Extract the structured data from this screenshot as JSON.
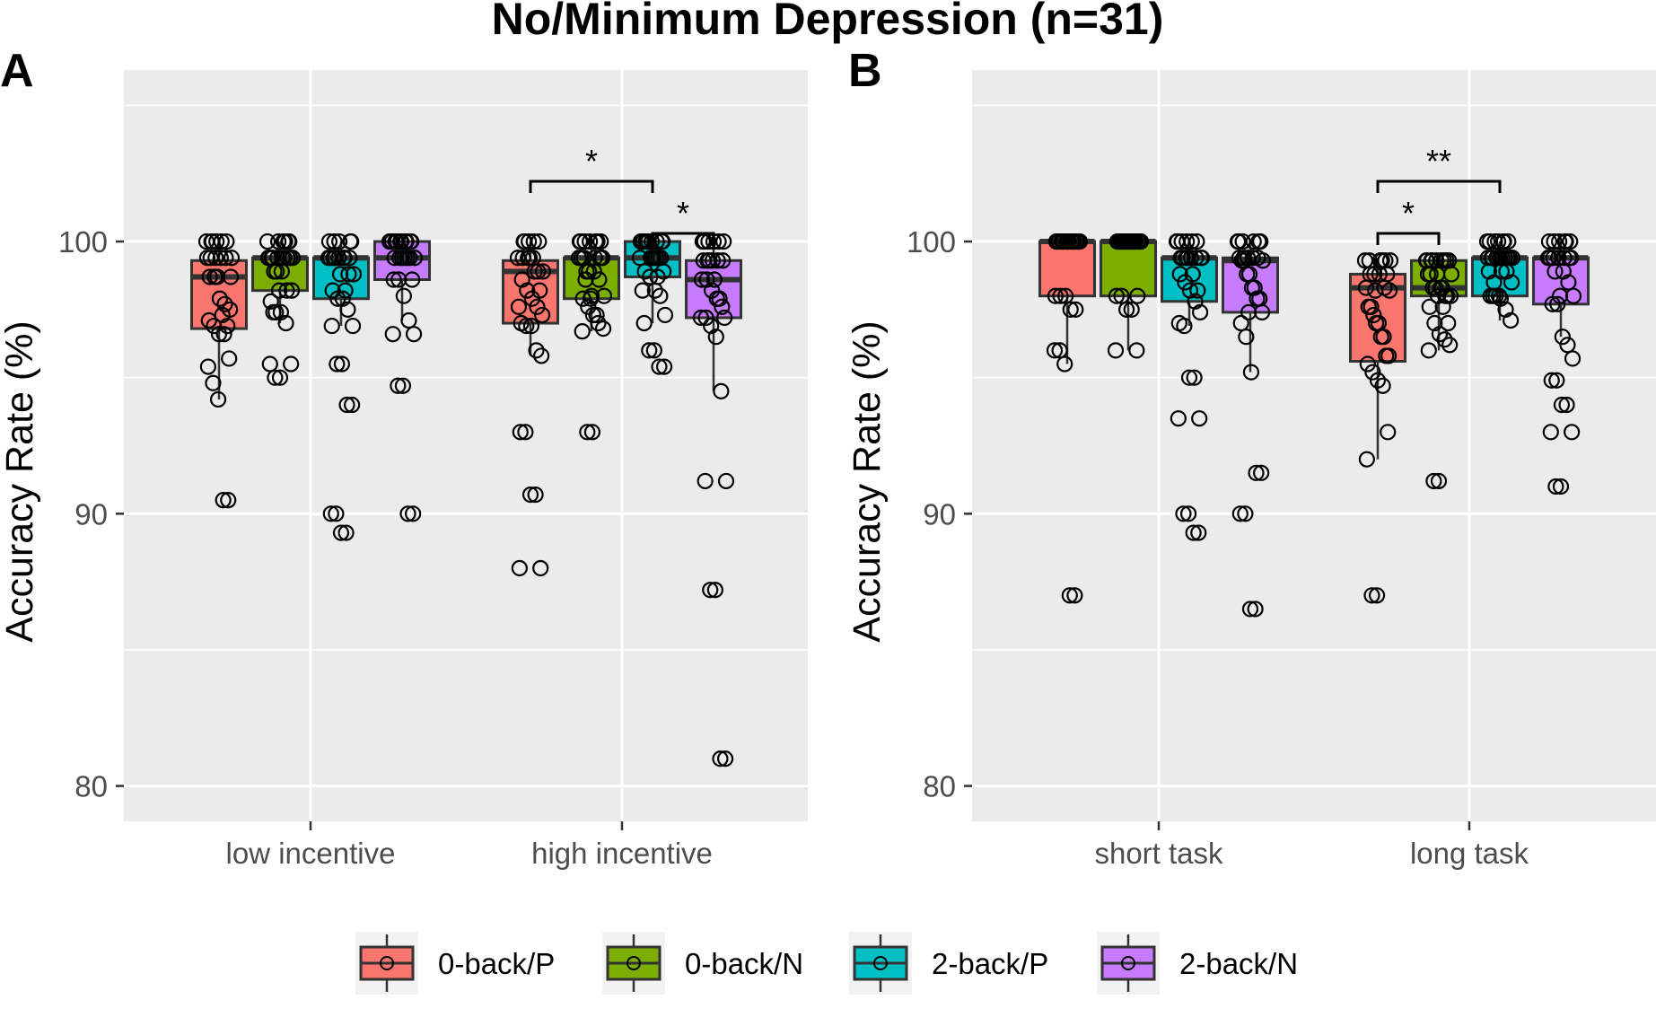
{
  "chart_data": {
    "type": "boxplot",
    "title": "No/Minimum Depression (n=31)",
    "ylabel": "Accuracy Rate (%)",
    "ylim": [
      78.7,
      106.3
    ],
    "yticks": [
      80,
      90,
      100
    ],
    "legend": {
      "position": "bottom",
      "items": [
        {
          "label": "0-back/P",
          "color": "#F8766D"
        },
        {
          "label": "0-back/N",
          "color": "#7CAE00"
        },
        {
          "label": "2-back/P",
          "color": "#00BFC4"
        },
        {
          "label": "2-back/N",
          "color": "#C77CFF"
        }
      ]
    },
    "panels": [
      {
        "tag": "A",
        "categories": [
          "low incentive",
          "high incentive"
        ],
        "groups": [
          {
            "category": "low incentive",
            "boxes": [
              {
                "series": "0-back/P",
                "q1": 96.8,
                "median": 98.7,
                "q3": 99.3,
                "whisker_low": 94.2,
                "whisker_high": 100,
                "points": [
                  100,
                  100,
                  100,
                  100,
                  100,
                  99.4,
                  99.4,
                  99.4,
                  99.4,
                  99.4,
                  98.7,
                  98.7,
                  98.7,
                  97.9,
                  97.7,
                  97.5,
                  97.1,
                  96.9,
                  96.6,
                  96.6,
                  95.7,
                  95.4,
                  94.8,
                  94.2,
                  90.5,
                  90.5,
                  99.4,
                  100,
                  98.7,
                  97.3,
                  96.9
                ]
              },
              {
                "series": "0-back/N",
                "q1": 98.2,
                "median": 99.4,
                "q3": 99.4,
                "whisker_low": 97.0,
                "whisker_high": 100,
                "points": [
                  100,
                  100,
                  100,
                  100,
                  99.4,
                  99.4,
                  99.4,
                  99.4,
                  99.4,
                  99.4,
                  98.9,
                  98.9,
                  98.2,
                  98.2,
                  97.8,
                  97.4,
                  97.4,
                  97.0,
                  95.5,
                  95.5,
                  95.0,
                  95.0,
                  100,
                  99.4,
                  99.4,
                  98.9,
                  98.2,
                  99.4,
                  100,
                  99.4,
                  97.4
                ]
              },
              {
                "series": "2-back/P",
                "q1": 97.9,
                "median": 99.4,
                "q3": 99.4,
                "whisker_low": 96.9,
                "whisker_high": 100,
                "points": [
                  100,
                  100,
                  100,
                  100,
                  99.4,
                  99.4,
                  99.4,
                  99.4,
                  99.4,
                  99.4,
                  98.8,
                  98.8,
                  98.2,
                  97.9,
                  97.9,
                  97.5,
                  96.9,
                  96.9,
                  95.5,
                  95.5,
                  94.0,
                  94.0,
                  90.0,
                  90.0,
                  89.3,
                  89.3,
                  100,
                  99.4,
                  99.4,
                  98.8,
                  98.2
                ]
              },
              {
                "series": "2-back/N",
                "q1": 98.6,
                "median": 99.4,
                "q3": 100,
                "whisker_low": 97.1,
                "whisker_high": 100,
                "points": [
                  100,
                  100,
                  100,
                  100,
                  100,
                  100,
                  100,
                  100,
                  100,
                  100,
                  99.4,
                  99.4,
                  99.4,
                  99.4,
                  99.4,
                  98.6,
                  98.6,
                  98.0,
                  97.1,
                  96.6,
                  96.6,
                  94.7,
                  94.7,
                  90.0,
                  90.0,
                  100,
                  100,
                  99.4,
                  99.4,
                  98.6,
                  100
                ]
              }
            ]
          },
          {
            "category": "high incentive",
            "boxes": [
              {
                "series": "0-back/P",
                "q1": 97.0,
                "median": 98.9,
                "q3": 99.3,
                "whisker_low": 95.8,
                "whisker_high": 100,
                "points": [
                  100,
                  100,
                  100,
                  100,
                  99.4,
                  99.4,
                  99.4,
                  99.4,
                  98.9,
                  98.9,
                  98.6,
                  98.2,
                  97.9,
                  97.6,
                  97.3,
                  97.0,
                  96.9,
                  96.9,
                  96.0,
                  95.8,
                  93.0,
                  93.0,
                  90.7,
                  90.7,
                  88.0,
                  88.0,
                  100,
                  99.4,
                  98.9,
                  98.2,
                  97.6
                ]
              },
              {
                "series": "0-back/N",
                "q1": 97.9,
                "median": 99.4,
                "q3": 99.4,
                "whisker_low": 96.7,
                "whisker_high": 100,
                "points": [
                  100,
                  100,
                  100,
                  100,
                  100,
                  99.4,
                  99.4,
                  99.4,
                  99.4,
                  98.9,
                  98.9,
                  98.6,
                  98.0,
                  97.9,
                  97.6,
                  97.3,
                  97.0,
                  96.8,
                  96.7,
                  93.0,
                  93.0,
                  100,
                  99.4,
                  99.4,
                  98.9,
                  98.0,
                  97.3,
                  99.4,
                  100,
                  98.6,
                  97.9
                ]
              },
              {
                "series": "2-back/P",
                "q1": 98.7,
                "median": 99.4,
                "q3": 100,
                "whisker_low": 97.0,
                "whisker_high": 100,
                "points": [
                  100,
                  100,
                  100,
                  100,
                  100,
                  100,
                  100,
                  99.4,
                  99.4,
                  99.4,
                  99.4,
                  98.9,
                  98.7,
                  98.2,
                  98.0,
                  97.3,
                  97.0,
                  96.0,
                  96.0,
                  95.4,
                  95.4,
                  100,
                  100,
                  99.4,
                  99.4,
                  98.9,
                  98.2,
                  100,
                  99.4,
                  98.7,
                  100
                ]
              },
              {
                "series": "2-back/N",
                "q1": 97.2,
                "median": 98.6,
                "q3": 99.3,
                "whisker_low": 94.5,
                "whisker_high": 100,
                "points": [
                  100,
                  100,
                  100,
                  100,
                  99.3,
                  99.3,
                  99.3,
                  99.3,
                  98.6,
                  98.6,
                  98.2,
                  97.9,
                  97.6,
                  97.2,
                  97.2,
                  96.9,
                  96.5,
                  94.5,
                  91.2,
                  91.2,
                  87.2,
                  87.2,
                  81.0,
                  81.0,
                  100,
                  99.3,
                  98.6,
                  97.9,
                  97.2,
                  99.3,
                  100
                ]
              }
            ]
          }
        ],
        "annotations": [
          {
            "category": "high incentive",
            "from": "0-back/P",
            "to": "2-back/P",
            "label": "*"
          },
          {
            "category": "high incentive",
            "from": "2-back/P",
            "to": "2-back/N",
            "label": "*"
          }
        ]
      },
      {
        "tag": "B",
        "categories": [
          "short task",
          "long task"
        ],
        "groups": [
          {
            "category": "short task",
            "boxes": [
              {
                "series": "0-back/P",
                "q1": 98.0,
                "median": 100,
                "q3": 100,
                "whisker_low": 95.5,
                "whisker_high": 100,
                "points": [
                  100,
                  100,
                  100,
                  100,
                  100,
                  100,
                  100,
                  100,
                  100,
                  100,
                  100,
                  100,
                  100,
                  100,
                  100,
                  100,
                  100,
                  100,
                  100,
                  98.0,
                  98.0,
                  98.0,
                  97.5,
                  97.5,
                  96.0,
                  96.0,
                  95.5,
                  87.0,
                  87.0,
                  100,
                  100
                ]
              },
              {
                "series": "0-back/N",
                "q1": 98.0,
                "median": 100,
                "q3": 100,
                "whisker_low": 96.0,
                "whisker_high": 100,
                "points": [
                  100,
                  100,
                  100,
                  100,
                  100,
                  100,
                  100,
                  100,
                  100,
                  100,
                  100,
                  100,
                  100,
                  100,
                  100,
                  100,
                  100,
                  100,
                  100,
                  100,
                  100,
                  98.0,
                  98.0,
                  98.0,
                  97.5,
                  97.5,
                  96.0,
                  96.0,
                  100,
                  100,
                  100
                ]
              },
              {
                "series": "2-back/P",
                "q1": 97.8,
                "median": 99.4,
                "q3": 99.4,
                "whisker_low": 96.9,
                "whisker_high": 100,
                "points": [
                  100,
                  100,
                  100,
                  100,
                  99.4,
                  99.4,
                  99.4,
                  99.4,
                  99.4,
                  99.4,
                  98.8,
                  98.5,
                  98.2,
                  97.8,
                  97.4,
                  97.0,
                  96.9,
                  95.0,
                  95.0,
                  93.5,
                  93.5,
                  90.0,
                  90.0,
                  89.3,
                  89.3,
                  100,
                  99.4,
                  99.4,
                  98.8,
                  98.2,
                  100
                ]
              },
              {
                "series": "2-back/N",
                "q1": 97.4,
                "median": 99.3,
                "q3": 99.4,
                "whisker_low": 95.2,
                "whisker_high": 100,
                "points": [
                  100,
                  100,
                  100,
                  100,
                  99.4,
                  99.4,
                  99.4,
                  99.3,
                  99.3,
                  98.8,
                  98.3,
                  97.9,
                  97.4,
                  97.0,
                  96.5,
                  95.2,
                  91.5,
                  91.5,
                  90.0,
                  90.0,
                  86.5,
                  86.5,
                  100,
                  99.4,
                  99.3,
                  98.8,
                  98.3,
                  97.9,
                  100,
                  99.4,
                  97.4
                ]
              }
            ]
          },
          {
            "category": "long task",
            "boxes": [
              {
                "series": "0-back/P",
                "q1": 95.6,
                "median": 98.3,
                "q3": 98.8,
                "whisker_low": 92.0,
                "whisker_high": 99.3,
                "points": [
                  99.3,
                  99.3,
                  99.3,
                  99.3,
                  98.8,
                  98.8,
                  98.3,
                  98.2,
                  97.6,
                  97.3,
                  97.0,
                  96.5,
                  95.8,
                  95.5,
                  95.2,
                  94.9,
                  94.7,
                  93.0,
                  92.0,
                  87.0,
                  87.0,
                  99.3,
                  98.8,
                  98.3,
                  97.6,
                  97.0,
                  96.5,
                  95.8,
                  99.3,
                  98.8,
                  98.2
                ]
              },
              {
                "series": "0-back/N",
                "q1": 98.0,
                "median": 98.3,
                "q3": 99.3,
                "whisker_low": 96.0,
                "whisker_high": 99.3,
                "points": [
                  99.3,
                  99.3,
                  99.3,
                  99.3,
                  99.3,
                  98.8,
                  98.8,
                  98.3,
                  98.3,
                  98.0,
                  98.0,
                  97.6,
                  97.0,
                  96.6,
                  96.4,
                  96.2,
                  96.0,
                  91.2,
                  91.2,
                  99.3,
                  99.3,
                  98.8,
                  98.3,
                  98.0,
                  97.6,
                  97.0,
                  99.3,
                  99.3,
                  98.8,
                  98.3,
                  98.0
                ]
              },
              {
                "series": "2-back/P",
                "q1": 98.0,
                "median": 99.4,
                "q3": 99.4,
                "whisker_low": 97.1,
                "whisker_high": 100,
                "points": [
                  100,
                  100,
                  100,
                  100,
                  99.4,
                  99.4,
                  99.4,
                  99.4,
                  99.4,
                  99.4,
                  99.4,
                  98.9,
                  98.9,
                  98.5,
                  98.0,
                  98.0,
                  97.9,
                  97.5,
                  97.1,
                  100,
                  100,
                  99.4,
                  99.4,
                  99.4,
                  98.9,
                  98.5,
                  98.0,
                  100,
                  99.4,
                  99.4,
                  98.0
                ]
              },
              {
                "series": "2-back/N",
                "q1": 97.7,
                "median": 99.4,
                "q3": 99.4,
                "whisker_low": 96.5,
                "whisker_high": 100,
                "points": [
                  100,
                  100,
                  100,
                  100,
                  99.4,
                  99.4,
                  99.4,
                  99.4,
                  99.4,
                  98.9,
                  98.5,
                  98.0,
                  97.7,
                  97.7,
                  96.5,
                  96.2,
                  95.7,
                  94.9,
                  94.9,
                  94.0,
                  94.0,
                  93.0,
                  93.0,
                  91.0,
                  91.0,
                  100,
                  99.4,
                  99.4,
                  98.9,
                  98.0,
                  100
                ]
              }
            ]
          }
        ],
        "annotations": [
          {
            "category": "long task",
            "from": "0-back/P",
            "to": "0-back/N",
            "label": "*"
          },
          {
            "category": "long task",
            "from": "0-back/P",
            "to": "2-back/P",
            "label": "**"
          }
        ]
      }
    ]
  }
}
